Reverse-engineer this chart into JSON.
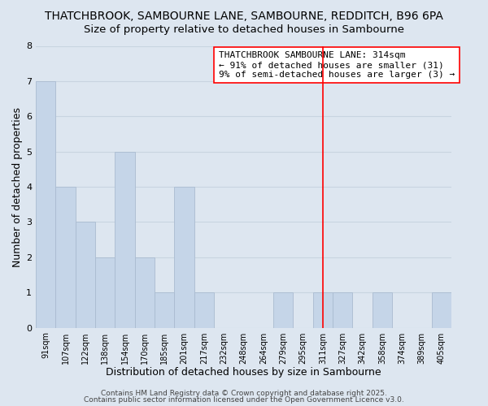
{
  "title1": "THATCHBROOK, SAMBOURNE LANE, SAMBOURNE, REDDITCH, B96 6PA",
  "title2": "Size of property relative to detached houses in Sambourne",
  "xlabel": "Distribution of detached houses by size in Sambourne",
  "ylabel": "Number of detached properties",
  "background_color": "#dde6f0",
  "bar_color": "#c5d5e8",
  "bar_edgecolor": "#aabbd0",
  "bin_labels": [
    "91sqm",
    "107sqm",
    "122sqm",
    "138sqm",
    "154sqm",
    "170sqm",
    "185sqm",
    "201sqm",
    "217sqm",
    "232sqm",
    "248sqm",
    "264sqm",
    "279sqm",
    "295sqm",
    "311sqm",
    "327sqm",
    "342sqm",
    "358sqm",
    "374sqm",
    "389sqm",
    "405sqm"
  ],
  "counts": [
    7,
    4,
    3,
    2,
    5,
    2,
    1,
    4,
    1,
    0,
    0,
    0,
    1,
    0,
    1,
    1,
    0,
    1,
    0,
    0,
    1
  ],
  "red_line_index": 14,
  "ylim": [
    0,
    8
  ],
  "yticks": [
    0,
    1,
    2,
    3,
    4,
    5,
    6,
    7,
    8
  ],
  "annotation_lines": [
    "THATCHBROOK SAMBOURNE LANE: 314sqm",
    "← 91% of detached houses are smaller (31)",
    "9% of semi-detached houses are larger (3) →"
  ],
  "footer1": "Contains HM Land Registry data © Crown copyright and database right 2025.",
  "footer2": "Contains public sector information licensed under the Open Government Licence v3.0.",
  "grid_color": "#c8d4e0",
  "title1_fontsize": 10,
  "title2_fontsize": 9.5,
  "annot_fontsize": 8,
  "footer_fontsize": 6.5
}
